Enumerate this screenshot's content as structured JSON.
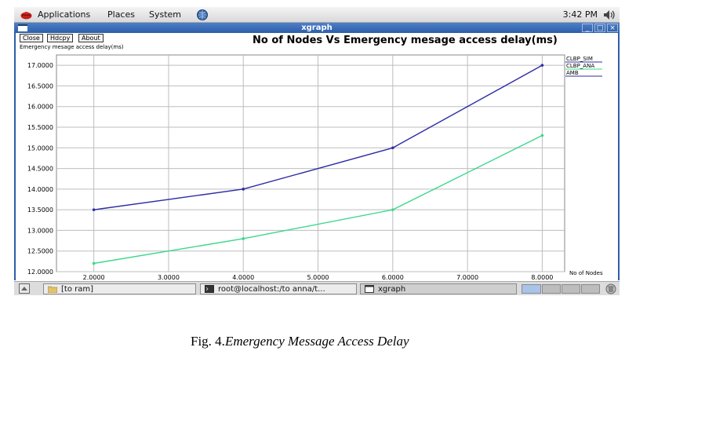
{
  "top_panel": {
    "menus": [
      "Applications",
      "Places",
      "System"
    ],
    "clock": "3:42 PM"
  },
  "window": {
    "title": "xgraph",
    "controls": [
      "_",
      "□",
      "×"
    ],
    "buttons": [
      "Close",
      "Hdcpy",
      "About"
    ]
  },
  "chart_data": {
    "type": "line",
    "title": "No of Nodes Vs Emergency mesage access delay(ms)",
    "ylabel": "Emergency mesage access delay(ms)",
    "xlabel": "No of Nodes",
    "xlim": [
      1.5,
      8.3
    ],
    "ylim": [
      12.0,
      17.25
    ],
    "x_ticks": [
      "2.0000",
      "3.0000",
      "4.0000",
      "5.0000",
      "6.0000",
      "7.0000",
      "8.0000"
    ],
    "x_tick_values": [
      2,
      3,
      4,
      5,
      6,
      7,
      8
    ],
    "y_ticks": [
      "12.0000",
      "12.5000",
      "13.0000",
      "13.5000",
      "14.0000",
      "14.5000",
      "15.0000",
      "15.5000",
      "16.0000",
      "16.5000",
      "17.0000"
    ],
    "y_tick_values": [
      12.0,
      12.5,
      13.0,
      13.5,
      14.0,
      14.5,
      15.0,
      15.5,
      16.0,
      16.5,
      17.0
    ],
    "grid": true,
    "legend_placement": "top-right",
    "legend": [
      "CLBP_SIM",
      "CLBP_ANA",
      "AMB"
    ],
    "series": [
      {
        "name": "CLBP_SIM",
        "color": "#2c2ca6",
        "x": [
          2,
          4,
          6,
          8
        ],
        "values": [
          13.5,
          14.0,
          15.0,
          17.0
        ]
      },
      {
        "name": "AMB",
        "color": "#3ad88a",
        "x": [
          2,
          4,
          6,
          8
        ],
        "values": [
          12.2,
          12.8,
          13.5,
          15.3
        ]
      }
    ]
  },
  "taskbar": {
    "tasks": [
      "[to ram]",
      "root@localhost:/to anna/t...",
      "xgraph"
    ]
  },
  "caption": {
    "prefix": "Fig. 4.",
    "text": "Emergency Message Access Delay"
  }
}
